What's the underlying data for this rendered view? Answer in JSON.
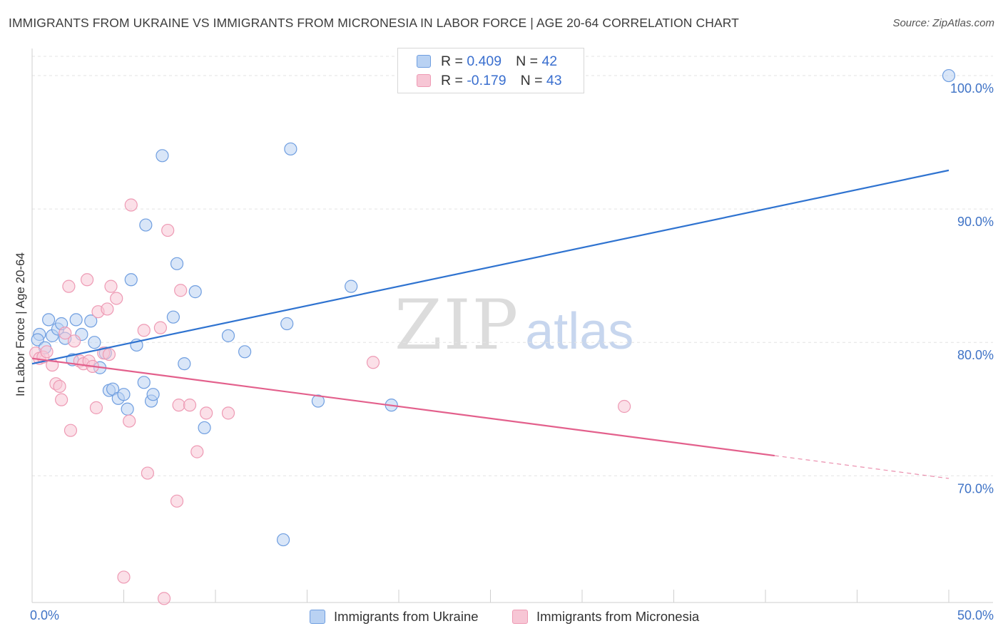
{
  "header": {
    "title": "IMMIGRANTS FROM UKRAINE VS IMMIGRANTS FROM MICRONESIA IN LABOR FORCE | AGE 20-64 CORRELATION CHART",
    "source": "Source: ZipAtlas.com"
  },
  "watermark": {
    "zip": "ZIP",
    "atlas": "atlas"
  },
  "legend": {
    "r_label": "R =",
    "n_label": "N =",
    "series": [
      {
        "r": "0.409",
        "n": "42"
      },
      {
        "r": "-0.179",
        "n": "43"
      }
    ]
  },
  "colors": {
    "ukraine_fill": "#b9d2f3",
    "ukraine_stroke": "#6f9ee0",
    "ukraine_line": "#2f73d0",
    "micronesia_fill": "#f7c6d5",
    "micronesia_stroke": "#ee9ab4",
    "micronesia_line": "#e3608c",
    "tick_label": "#3f73c6",
    "grid": "#e3e3e3"
  },
  "chart_data": {
    "type": "scatter",
    "title": "IMMIGRANTS FROM UKRAINE VS IMMIGRANTS FROM MICRONESIA IN LABOR FORCE | AGE 20-64 CORRELATION CHART",
    "xlabel": "",
    "ylabel": "In Labor Force | Age 20-64",
    "xlim": [
      0,
      50
    ],
    "ylim": [
      60.5,
      101.5
    ],
    "x_ticks": [
      0,
      50
    ],
    "x_tick_labels": [
      "0.0%",
      "50.0%"
    ],
    "y_ticks": [
      70,
      80,
      90,
      100
    ],
    "y_tick_labels": [
      "70.0%",
      "80.0%",
      "90.0%",
      "100.0%"
    ],
    "grid": true,
    "legend_position": "top-center",
    "series": [
      {
        "name": "Immigrants from Ukraine",
        "r": 0.409,
        "n": 42,
        "trend": {
          "x0": 0,
          "y0": 78.4,
          "x1": 50,
          "y1": 92.9,
          "solid_until": 50
        },
        "points": [
          [
            0.4,
            80.6
          ],
          [
            0.3,
            80.2
          ],
          [
            0.7,
            79.6
          ],
          [
            0.9,
            81.7
          ],
          [
            1.1,
            80.5
          ],
          [
            1.4,
            81.0
          ],
          [
            1.6,
            81.4
          ],
          [
            1.8,
            80.3
          ],
          [
            2.2,
            78.7
          ],
          [
            2.4,
            81.7
          ],
          [
            2.7,
            80.6
          ],
          [
            3.2,
            81.6
          ],
          [
            3.4,
            80.0
          ],
          [
            3.7,
            78.1
          ],
          [
            4.0,
            79.2
          ],
          [
            4.2,
            76.4
          ],
          [
            4.4,
            76.5
          ],
          [
            4.7,
            75.8
          ],
          [
            5.0,
            76.1
          ],
          [
            5.2,
            75.0
          ],
          [
            5.4,
            84.7
          ],
          [
            5.7,
            79.8
          ],
          [
            6.1,
            77.0
          ],
          [
            6.2,
            88.8
          ],
          [
            6.5,
            75.6
          ],
          [
            6.6,
            76.1
          ],
          [
            7.1,
            94.0
          ],
          [
            7.7,
            81.9
          ],
          [
            7.9,
            85.9
          ],
          [
            8.3,
            78.4
          ],
          [
            8.9,
            83.8
          ],
          [
            9.4,
            73.6
          ],
          [
            10.7,
            80.5
          ],
          [
            11.6,
            79.3
          ],
          [
            13.7,
            65.2
          ],
          [
            13.9,
            81.4
          ],
          [
            14.1,
            94.5
          ],
          [
            15.6,
            75.6
          ],
          [
            17.4,
            84.2
          ],
          [
            19.6,
            75.3
          ],
          [
            50.0,
            100.0
          ]
        ]
      },
      {
        "name": "Immigrants from Micronesia",
        "r": -0.179,
        "n": 43,
        "trend": {
          "x0": 0,
          "y0": 78.8,
          "x1": 50,
          "y1": 69.8,
          "solid_until": 40.5
        },
        "points": [
          [
            0.2,
            79.2
          ],
          [
            0.4,
            78.8
          ],
          [
            0.6,
            78.9
          ],
          [
            0.8,
            79.3
          ],
          [
            1.1,
            78.3
          ],
          [
            1.3,
            76.9
          ],
          [
            1.5,
            76.7
          ],
          [
            1.6,
            75.7
          ],
          [
            1.8,
            80.7
          ],
          [
            2.0,
            84.2
          ],
          [
            2.1,
            73.4
          ],
          [
            2.3,
            80.1
          ],
          [
            2.6,
            78.6
          ],
          [
            2.8,
            78.4
          ],
          [
            3.0,
            84.7
          ],
          [
            3.1,
            78.6
          ],
          [
            3.3,
            78.2
          ],
          [
            3.5,
            75.1
          ],
          [
            3.6,
            82.3
          ],
          [
            3.9,
            79.2
          ],
          [
            4.1,
            82.5
          ],
          [
            4.2,
            79.1
          ],
          [
            4.3,
            84.2
          ],
          [
            4.6,
            83.3
          ],
          [
            5.0,
            62.4
          ],
          [
            5.3,
            74.1
          ],
          [
            5.4,
            90.3
          ],
          [
            6.1,
            80.9
          ],
          [
            6.3,
            70.2
          ],
          [
            7.0,
            81.1
          ],
          [
            7.2,
            60.8
          ],
          [
            7.4,
            88.4
          ],
          [
            7.9,
            68.1
          ],
          [
            8.0,
            75.3
          ],
          [
            8.1,
            83.9
          ],
          [
            8.6,
            75.3
          ],
          [
            9.0,
            71.8
          ],
          [
            9.5,
            74.7
          ],
          [
            10.7,
            74.7
          ],
          [
            18.6,
            78.5
          ],
          [
            32.3,
            75.2
          ]
        ]
      }
    ]
  },
  "bottom_legend": {
    "ukraine": "Immigrants from Ukraine",
    "micronesia": "Immigrants from Micronesia"
  }
}
